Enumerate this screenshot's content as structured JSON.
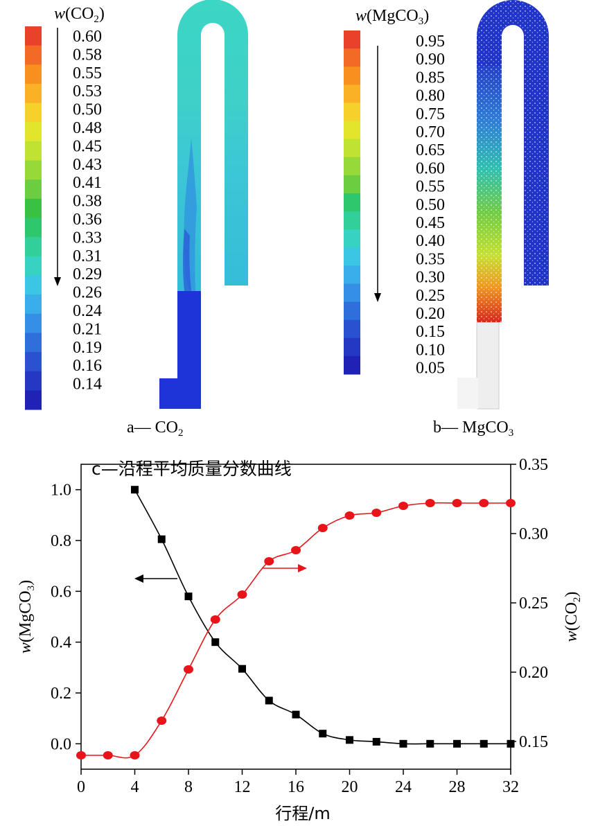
{
  "panel_a": {
    "legend_title_w": "w",
    "legend_title_species": "(CO",
    "legend_title_sub": "2",
    "legend_title_close": ")",
    "legend_values": [
      "0.60",
      "0.58",
      "0.55",
      "0.53",
      "0.50",
      "0.48",
      "0.45",
      "0.43",
      "0.41",
      "0.38",
      "0.36",
      "0.33",
      "0.31",
      "0.29",
      "0.26",
      "0.24",
      "0.21",
      "0.19",
      "0.16",
      "0.14"
    ],
    "caption_prefix": "a— CO",
    "caption_sub": "2"
  },
  "panel_b": {
    "legend_title_w": "w",
    "legend_title_species": "(MgCO",
    "legend_title_sub": "3",
    "legend_title_close": ")",
    "legend_values": [
      "0.95",
      "0.90",
      "0.85",
      "0.80",
      "0.75",
      "0.70",
      "0.65",
      "0.60",
      "0.55",
      "0.50",
      "0.45",
      "0.40",
      "0.35",
      "0.30",
      "0.25",
      "0.20",
      "0.15",
      "0.10",
      "0.05"
    ],
    "caption_prefix": "b— MgCO",
    "caption_sub": "3"
  },
  "colorbar_colors": [
    "#e8432a",
    "#f26a26",
    "#f8901f",
    "#fbb126",
    "#f5d12b",
    "#e1e52b",
    "#bfe233",
    "#98d93a",
    "#6dcd41",
    "#38c243",
    "#2fc76e",
    "#33cf9a",
    "#36d3c2",
    "#3bc7e4",
    "#3aaee8",
    "#358fe4",
    "#2f6fdc",
    "#2a52d0",
    "#2438c4",
    "#1f22b5"
  ],
  "chart_data": {
    "type": "line",
    "title": "c—沿程平均质量分数曲线",
    "xlabel": "行程/m",
    "ylabel_left": "w(MgCO3)",
    "ylabel_right": "w(CO2)",
    "xlim": [
      0,
      32
    ],
    "ylim_left": [
      -0.1,
      1.1
    ],
    "ylim_right": [
      0.13,
      0.35
    ],
    "x_ticks": [
      0,
      4,
      8,
      12,
      16,
      20,
      24,
      28,
      32
    ],
    "y_ticks_left": [
      0.0,
      0.2,
      0.4,
      0.6,
      0.8,
      1.0
    ],
    "y_ticks_right": [
      0.15,
      0.2,
      0.25,
      0.3,
      0.35
    ],
    "x_tick_labels": [
      "0",
      "4",
      "8",
      "12",
      "16",
      "20",
      "24",
      "28",
      "32"
    ],
    "y_tick_labels_left": [
      "0.0",
      "0.2",
      "0.4",
      "0.6",
      "0.8",
      "1.0"
    ],
    "y_tick_labels_right": [
      "0.15",
      "0.20",
      "0.25",
      "0.30",
      "0.35"
    ],
    "series": [
      {
        "axis": "left",
        "color": "#000000",
        "marker": "square",
        "x": [
          4,
          6,
          8,
          10,
          12,
          14,
          16,
          18,
          20,
          22,
          24,
          26,
          28,
          30,
          32
        ],
        "values": [
          1.0,
          0.805,
          0.58,
          0.4,
          0.295,
          0.17,
          0.115,
          0.04,
          0.015,
          0.008,
          0.0,
          0.0,
          0.0,
          0.0,
          0.0
        ]
      },
      {
        "axis": "right",
        "color": "#e8141a",
        "marker": "circle",
        "x": [
          0,
          2,
          4,
          6,
          8,
          10,
          12,
          14,
          16,
          18,
          20,
          22,
          24,
          26,
          28,
          30,
          32
        ],
        "values": [
          0.14,
          0.14,
          0.14,
          0.165,
          0.202,
          0.238,
          0.256,
          0.28,
          0.288,
          0.304,
          0.313,
          0.315,
          0.32,
          0.322,
          0.322,
          0.322,
          0.322
        ]
      }
    ],
    "annotations": [
      {
        "type": "arrow",
        "points_to": "left axis",
        "color": "#000000",
        "near_x": 9
      },
      {
        "type": "arrow",
        "points_to": "right axis",
        "color": "#e8141a",
        "near_x": 14
      }
    ]
  }
}
